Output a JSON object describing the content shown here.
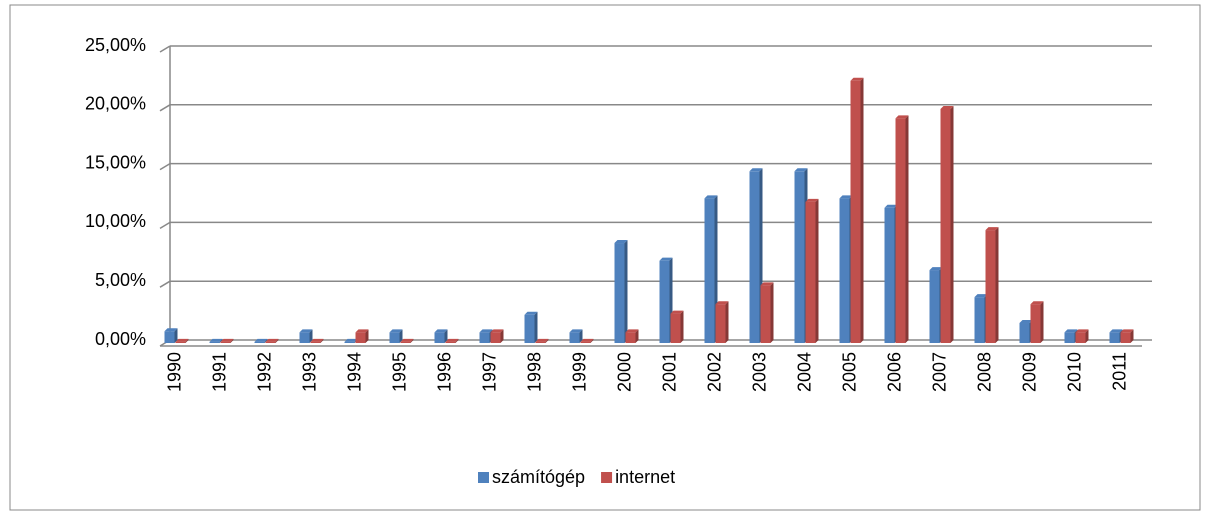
{
  "chart_data": {
    "type": "bar",
    "categories": [
      "1990",
      "1991",
      "1992",
      "1993",
      "1994",
      "1995",
      "1996",
      "1997",
      "1998",
      "1999",
      "2000",
      "2001",
      "2002",
      "2003",
      "2004",
      "2005",
      "2006",
      "2007",
      "2008",
      "2009",
      "2010",
      "2011"
    ],
    "series": [
      {
        "name": "számítógép",
        "color": "#4f81bd",
        "values": [
          1.0,
          0.1,
          0.1,
          0.9,
          0.1,
          0.9,
          0.9,
          0.9,
          2.4,
          0.9,
          8.5,
          7.0,
          12.3,
          14.6,
          14.6,
          12.3,
          11.5,
          6.2,
          3.9,
          1.7,
          0.9,
          0.9
        ]
      },
      {
        "name": "internet",
        "color": "#c0504d",
        "values": [
          0.1,
          0.1,
          0.1,
          0.1,
          0.9,
          0.1,
          0.1,
          0.9,
          0.1,
          0.1,
          0.9,
          2.5,
          3.3,
          4.9,
          12.0,
          22.3,
          19.1,
          19.9,
          9.6,
          3.3,
          0.9,
          0.9
        ]
      }
    ],
    "ylim": [
      0,
      25
    ],
    "yticks": [
      {
        "value": 0,
        "label": "0,00%"
      },
      {
        "value": 5,
        "label": "5,00%"
      },
      {
        "value": 10,
        "label": "10,00%"
      },
      {
        "value": 15,
        "label": "15,00%"
      },
      {
        "value": 20,
        "label": "20,00%"
      },
      {
        "value": 25,
        "label": "25,00%"
      }
    ],
    "grid": true,
    "legend": "bottom"
  }
}
